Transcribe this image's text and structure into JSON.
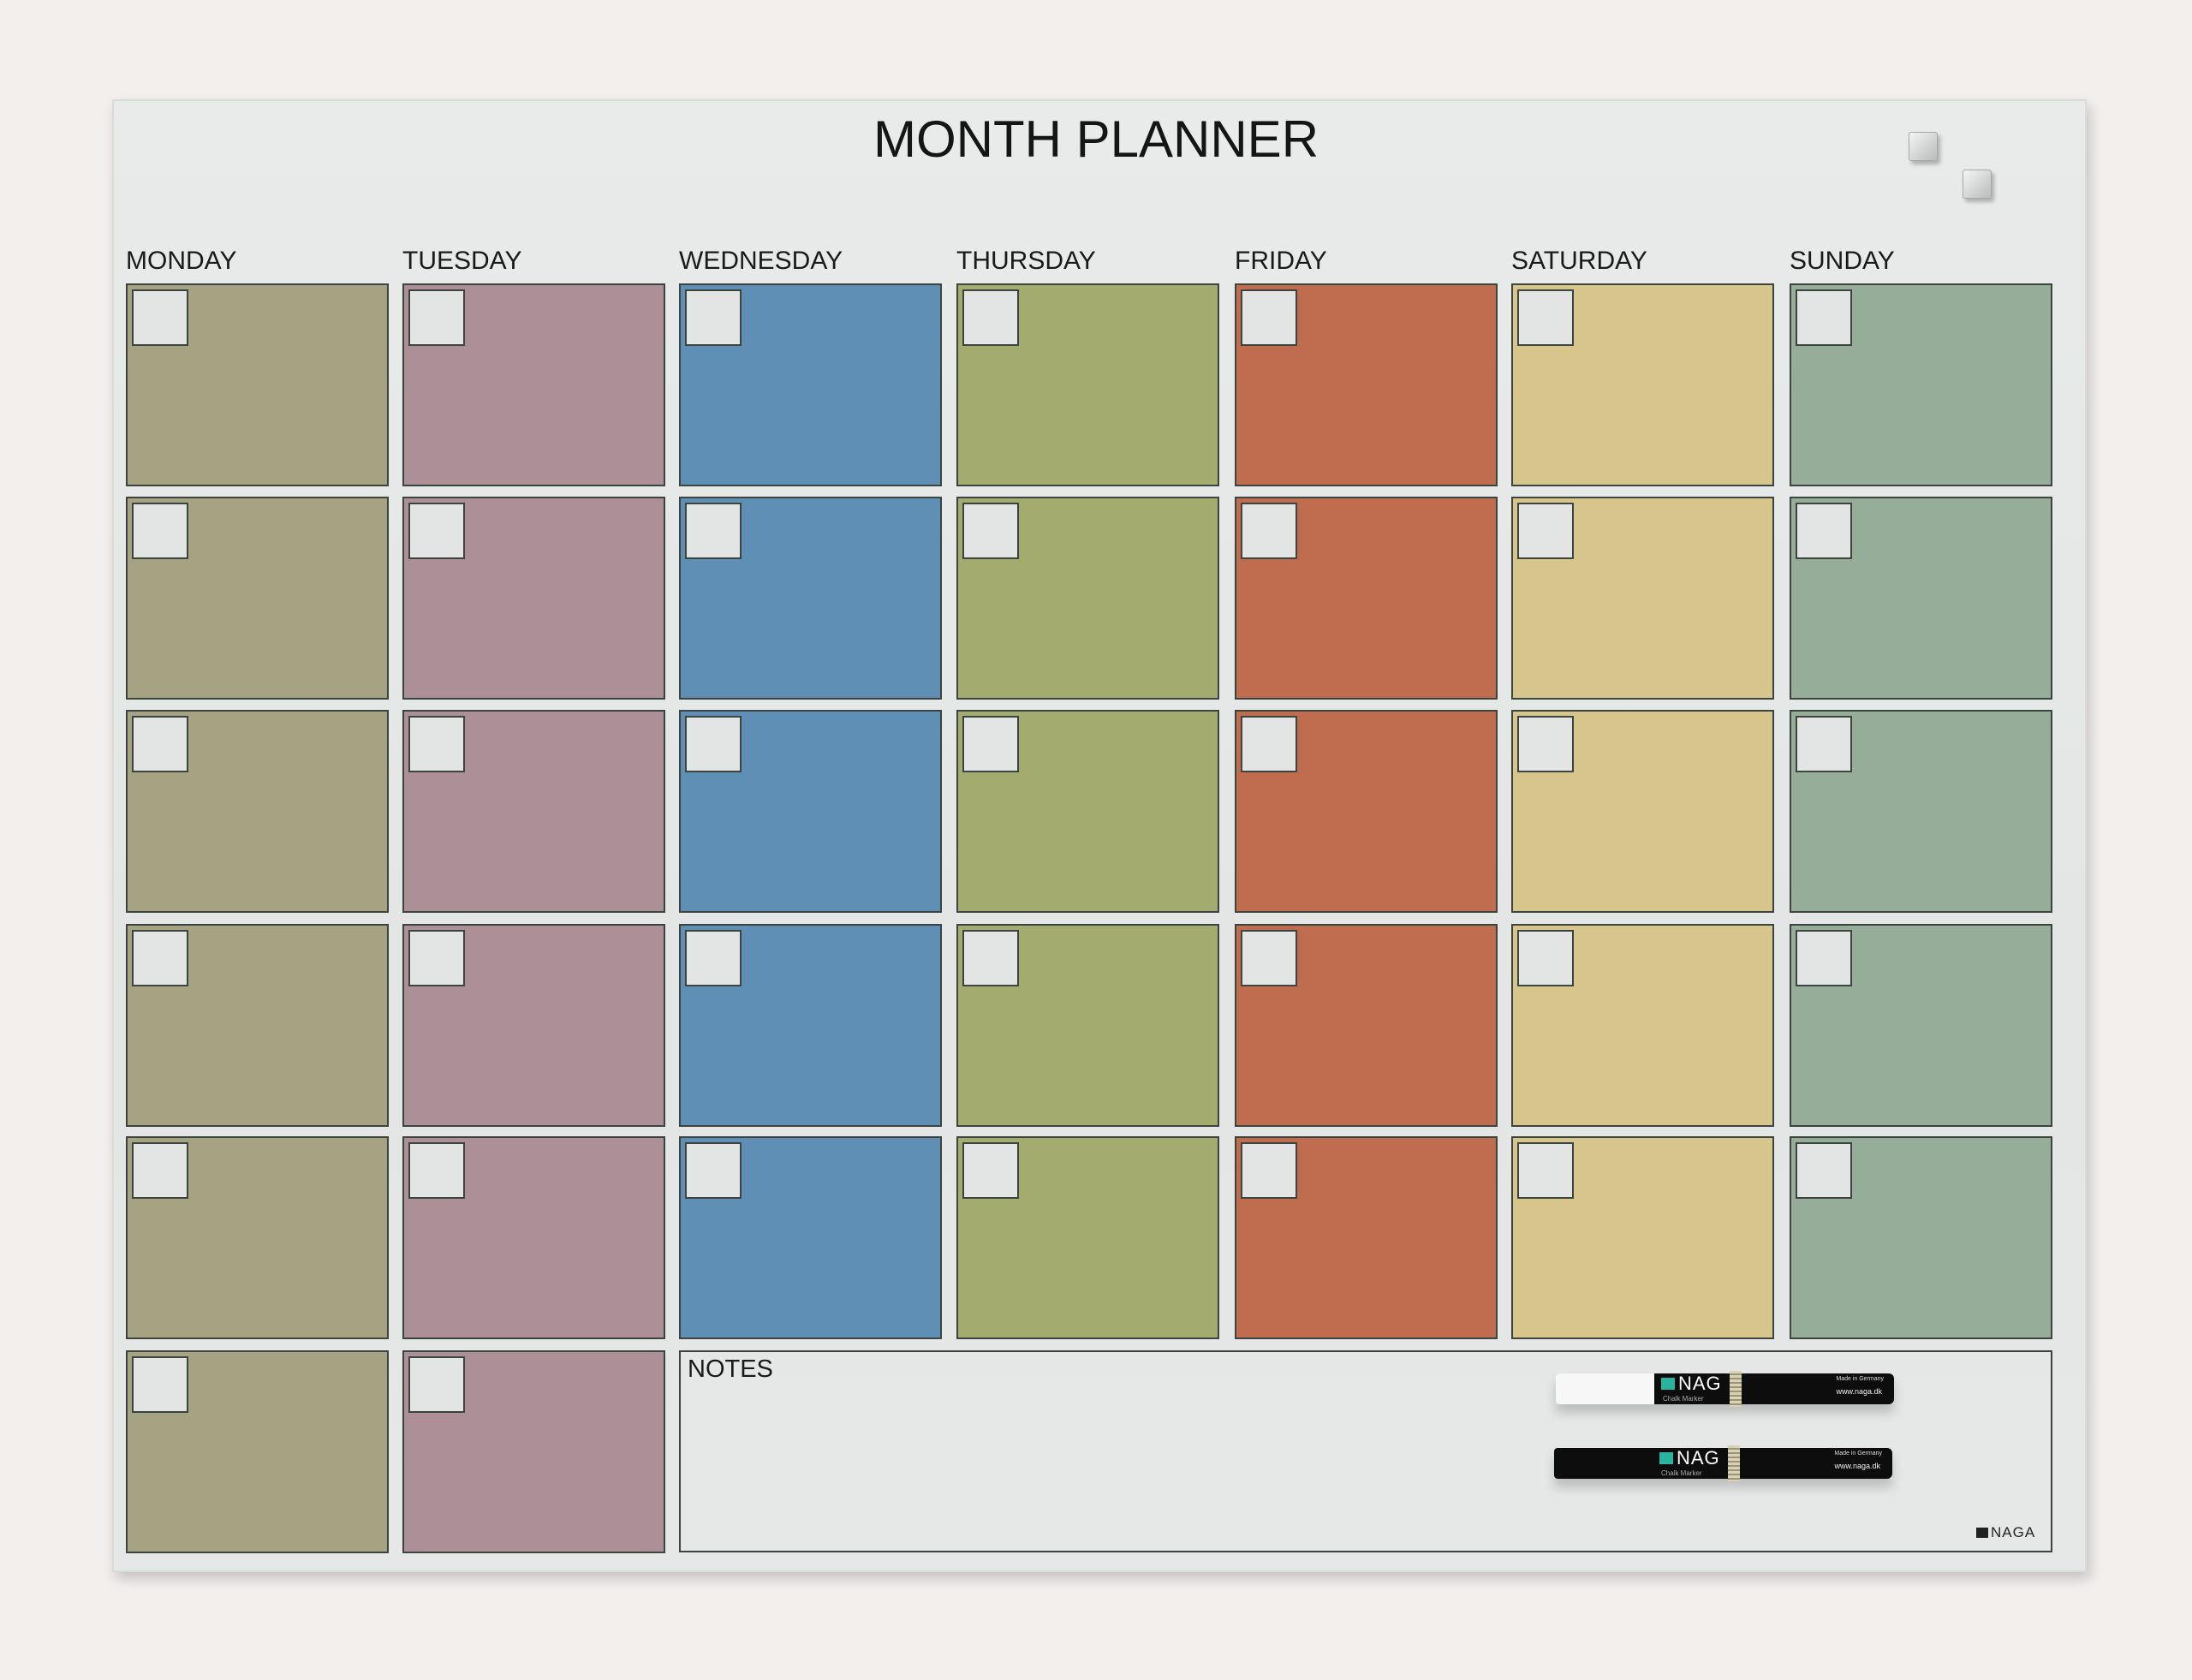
{
  "title": "MONTH PLANNER",
  "days": [
    {
      "label": "MONDAY",
      "color": "#a6a382",
      "rows": 6
    },
    {
      "label": "TUESDAY",
      "color": "#ad9097",
      "rows": 6
    },
    {
      "label": "WEDNESDAY",
      "color": "#5f8fb4",
      "rows": 5
    },
    {
      "label": "THURSDAY",
      "color": "#a3ab6e",
      "rows": 5
    },
    {
      "label": "FRIDAY",
      "color": "#c06d4f",
      "rows": 5
    },
    {
      "label": "SATURDAY",
      "color": "#d6c68c",
      "rows": 5
    },
    {
      "label": "SUNDAY",
      "color": "#95ad99",
      "rows": 5
    }
  ],
  "notes": {
    "label": "NOTES"
  },
  "markers": [
    {
      "brand": "NAG",
      "type": "Chalk Marker",
      "made": "Made in Germany",
      "url": "www.naga.dk",
      "cap_color": "#f7f7f7"
    },
    {
      "brand": "NAG",
      "type": "Chalk Marker",
      "made": "Made in Germany",
      "url": "www.naga.dk",
      "cap_color": "#0d0d0d"
    }
  ],
  "logo": "NAGA"
}
